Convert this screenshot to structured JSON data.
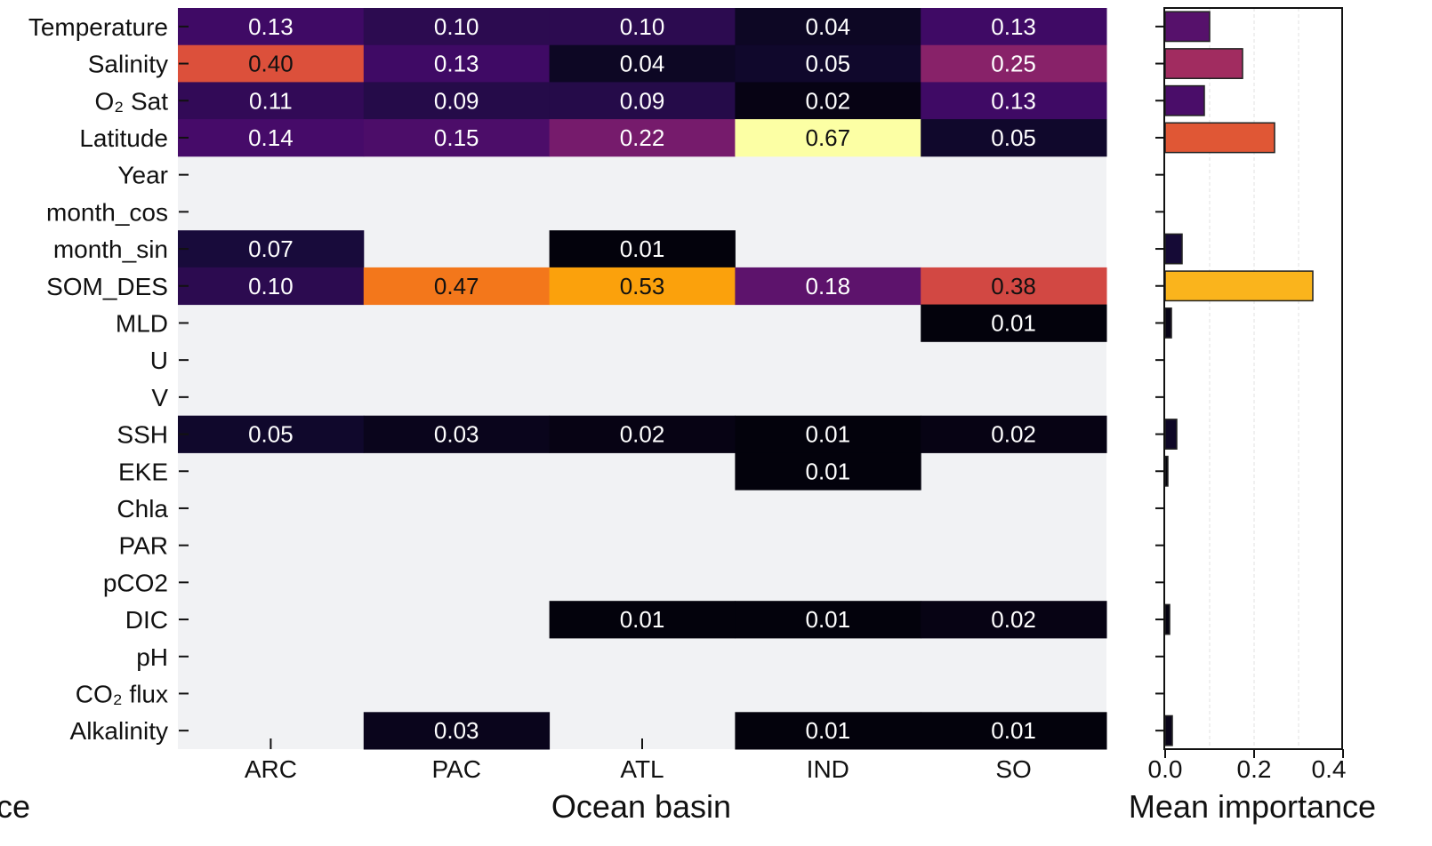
{
  "chart_data": [
    {
      "type": "heatmap",
      "xlabel": "Ocean basin",
      "ylabel_fragment": "ce",
      "categories_x": [
        "ARC",
        "PAC",
        "ATL",
        "IND",
        "SO"
      ],
      "categories_y": [
        "Temperature",
        "Salinity",
        "O₂ Sat",
        "Latitude",
        "Year",
        "month_cos",
        "month_sin",
        "SOM_DES",
        "MLD",
        "U",
        "V",
        "SSH",
        "EKE",
        "Chla",
        "PAR",
        "pCO2",
        "DIC",
        "pH",
        "CO₂ flux",
        "Alkalinity"
      ],
      "x_ticks_shown": [
        "ARC",
        "ATL"
      ],
      "values": [
        [
          0.13,
          0.1,
          0.1,
          0.04,
          0.13
        ],
        [
          0.4,
          0.13,
          0.04,
          0.05,
          0.25
        ],
        [
          0.11,
          0.09,
          0.09,
          0.02,
          0.13
        ],
        [
          0.14,
          0.15,
          0.22,
          0.67,
          0.05
        ],
        [
          null,
          null,
          null,
          null,
          null
        ],
        [
          null,
          null,
          null,
          null,
          null
        ],
        [
          0.07,
          null,
          0.01,
          null,
          null
        ],
        [
          0.1,
          0.47,
          0.53,
          0.18,
          0.38
        ],
        [
          null,
          null,
          null,
          null,
          0.01
        ],
        [
          null,
          null,
          null,
          null,
          null
        ],
        [
          null,
          null,
          null,
          null,
          null
        ],
        [
          0.05,
          0.03,
          0.02,
          0.01,
          0.02
        ],
        [
          null,
          null,
          null,
          0.01,
          null
        ],
        [
          null,
          null,
          null,
          null,
          null
        ],
        [
          null,
          null,
          null,
          null,
          null
        ],
        [
          null,
          null,
          null,
          null,
          null
        ],
        [
          null,
          null,
          0.01,
          0.01,
          0.02
        ],
        [
          null,
          null,
          null,
          null,
          null
        ],
        [
          null,
          null,
          null,
          null,
          null
        ],
        [
          null,
          0.03,
          null,
          0.01,
          0.01
        ]
      ],
      "colormap": "inferno",
      "vmin": 0,
      "vmax": 0.67,
      "missing_color": "#f1f2f4"
    },
    {
      "type": "bar",
      "orientation": "horizontal",
      "xlabel": "Mean importance",
      "xlim": [
        0,
        0.4
      ],
      "xticks": [
        0.0,
        0.2,
        0.4
      ],
      "xtick_labels": [
        "0.0",
        "0.2",
        "0.4"
      ],
      "grid": "vertical dashed",
      "categories": [
        "Temperature",
        "Salinity",
        "O₂ Sat",
        "Latitude",
        "Year",
        "month_cos",
        "month_sin",
        "SOM_DES",
        "MLD",
        "U",
        "V",
        "SSH",
        "EKE",
        "Chla",
        "PAR",
        "pCO2",
        "DIC",
        "pH",
        "CO₂ flux",
        "Alkalinity"
      ],
      "values": [
        0.1,
        0.174,
        0.088,
        0.246,
        0,
        0,
        0.038,
        0.332,
        0.014,
        0,
        0,
        0.026,
        0.006,
        0,
        0,
        0,
        0.01,
        0,
        0,
        0.016
      ]
    }
  ]
}
